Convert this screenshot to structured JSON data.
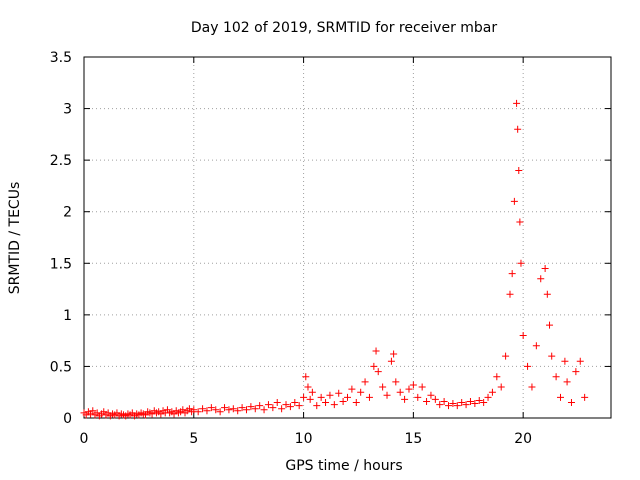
{
  "chart_data": {
    "type": "scatter",
    "title": "Day 102 of 2019, SRMTID for receiver mbar",
    "xlabel": "GPS time / hours",
    "ylabel": "SRMTID / TECUs",
    "xlim": [
      0,
      24
    ],
    "ylim": [
      0,
      3.5
    ],
    "x_ticks": [
      0,
      5,
      10,
      15,
      20
    ],
    "x_tick_labels": [
      "0",
      "5",
      "10",
      "15",
      "20"
    ],
    "y_ticks": [
      0,
      0.5,
      1,
      1.5,
      2,
      2.5,
      3,
      3.5
    ],
    "y_tick_labels": [
      "0",
      "0.5",
      "1",
      "1.5",
      "2",
      "2.5",
      "3",
      "3.5"
    ],
    "grid": true,
    "marker": "+",
    "color": "#ff0000",
    "series": [
      {
        "points": [
          [
            0.0,
            0.05
          ],
          [
            0.1,
            0.03
          ],
          [
            0.2,
            0.06
          ],
          [
            0.3,
            0.04
          ],
          [
            0.4,
            0.07
          ],
          [
            0.5,
            0.03
          ],
          [
            0.6,
            0.05
          ],
          [
            0.7,
            0.02
          ],
          [
            0.8,
            0.04
          ],
          [
            0.9,
            0.06
          ],
          [
            1.0,
            0.03
          ],
          [
            1.1,
            0.05
          ],
          [
            1.2,
            0.02
          ],
          [
            1.3,
            0.04
          ],
          [
            1.4,
            0.03
          ],
          [
            1.5,
            0.05
          ],
          [
            1.6,
            0.02
          ],
          [
            1.7,
            0.04
          ],
          [
            1.8,
            0.03
          ],
          [
            1.9,
            0.02
          ],
          [
            2.0,
            0.04
          ],
          [
            2.1,
            0.03
          ],
          [
            2.2,
            0.05
          ],
          [
            2.3,
            0.02
          ],
          [
            2.4,
            0.04
          ],
          [
            2.5,
            0.03
          ],
          [
            2.6,
            0.05
          ],
          [
            2.7,
            0.04
          ],
          [
            2.8,
            0.03
          ],
          [
            2.9,
            0.06
          ],
          [
            3.0,
            0.05
          ],
          [
            3.1,
            0.04
          ],
          [
            3.2,
            0.07
          ],
          [
            3.3,
            0.05
          ],
          [
            3.4,
            0.06
          ],
          [
            3.5,
            0.04
          ],
          [
            3.6,
            0.07
          ],
          [
            3.7,
            0.05
          ],
          [
            3.8,
            0.08
          ],
          [
            3.9,
            0.05
          ],
          [
            4.0,
            0.06
          ],
          [
            4.1,
            0.04
          ],
          [
            4.2,
            0.07
          ],
          [
            4.3,
            0.05
          ],
          [
            4.4,
            0.06
          ],
          [
            4.5,
            0.08
          ],
          [
            4.6,
            0.05
          ],
          [
            4.7,
            0.07
          ],
          [
            4.8,
            0.09
          ],
          [
            4.9,
            0.06
          ],
          [
            5.0,
            0.08
          ],
          [
            5.2,
            0.06
          ],
          [
            5.4,
            0.09
          ],
          [
            5.6,
            0.07
          ],
          [
            5.8,
            0.1
          ],
          [
            6.0,
            0.08
          ],
          [
            6.2,
            0.06
          ],
          [
            6.4,
            0.1
          ],
          [
            6.6,
            0.08
          ],
          [
            6.8,
            0.09
          ],
          [
            7.0,
            0.07
          ],
          [
            7.2,
            0.1
          ],
          [
            7.4,
            0.08
          ],
          [
            7.6,
            0.11
          ],
          [
            7.8,
            0.09
          ],
          [
            8.0,
            0.12
          ],
          [
            8.2,
            0.08
          ],
          [
            8.4,
            0.13
          ],
          [
            8.6,
            0.1
          ],
          [
            8.8,
            0.15
          ],
          [
            9.0,
            0.09
          ],
          [
            9.2,
            0.13
          ],
          [
            9.4,
            0.11
          ],
          [
            9.6,
            0.15
          ],
          [
            9.8,
            0.12
          ],
          [
            10.0,
            0.2
          ],
          [
            10.1,
            0.4
          ],
          [
            10.2,
            0.3
          ],
          [
            10.3,
            0.18
          ],
          [
            10.4,
            0.25
          ],
          [
            10.6,
            0.12
          ],
          [
            10.8,
            0.2
          ],
          [
            11.0,
            0.15
          ],
          [
            11.2,
            0.22
          ],
          [
            11.4,
            0.13
          ],
          [
            11.6,
            0.24
          ],
          [
            11.8,
            0.16
          ],
          [
            12.0,
            0.2
          ],
          [
            12.2,
            0.28
          ],
          [
            12.4,
            0.15
          ],
          [
            12.6,
            0.25
          ],
          [
            12.8,
            0.35
          ],
          [
            13.0,
            0.2
          ],
          [
            13.2,
            0.5
          ],
          [
            13.3,
            0.65
          ],
          [
            13.4,
            0.45
          ],
          [
            13.6,
            0.3
          ],
          [
            13.8,
            0.22
          ],
          [
            14.0,
            0.55
          ],
          [
            14.1,
            0.62
          ],
          [
            14.2,
            0.35
          ],
          [
            14.4,
            0.25
          ],
          [
            14.6,
            0.18
          ],
          [
            14.8,
            0.28
          ],
          [
            15.0,
            0.32
          ],
          [
            15.2,
            0.2
          ],
          [
            15.4,
            0.3
          ],
          [
            15.6,
            0.16
          ],
          [
            15.8,
            0.22
          ],
          [
            16.0,
            0.18
          ],
          [
            16.2,
            0.13
          ],
          [
            16.4,
            0.16
          ],
          [
            16.6,
            0.12
          ],
          [
            16.8,
            0.14
          ],
          [
            17.0,
            0.12
          ],
          [
            17.2,
            0.15
          ],
          [
            17.4,
            0.13
          ],
          [
            17.6,
            0.16
          ],
          [
            17.8,
            0.14
          ],
          [
            18.0,
            0.17
          ],
          [
            18.2,
            0.15
          ],
          [
            18.4,
            0.2
          ],
          [
            18.6,
            0.25
          ],
          [
            18.8,
            0.4
          ],
          [
            19.0,
            0.3
          ],
          [
            19.2,
            0.6
          ],
          [
            19.4,
            1.2
          ],
          [
            19.5,
            1.4
          ],
          [
            19.6,
            2.1
          ],
          [
            19.7,
            3.05
          ],
          [
            19.75,
            2.8
          ],
          [
            19.8,
            2.4
          ],
          [
            19.85,
            1.9
          ],
          [
            19.9,
            1.5
          ],
          [
            20.0,
            0.8
          ],
          [
            20.2,
            0.5
          ],
          [
            20.4,
            0.3
          ],
          [
            20.6,
            0.7
          ],
          [
            20.8,
            1.35
          ],
          [
            21.0,
            1.45
          ],
          [
            21.1,
            1.2
          ],
          [
            21.2,
            0.9
          ],
          [
            21.3,
            0.6
          ],
          [
            21.5,
            0.4
          ],
          [
            21.7,
            0.2
          ],
          [
            21.9,
            0.55
          ],
          [
            22.0,
            0.35
          ],
          [
            22.2,
            0.15
          ],
          [
            22.4,
            0.45
          ],
          [
            22.6,
            0.55
          ],
          [
            22.8,
            0.2
          ]
        ]
      }
    ]
  }
}
